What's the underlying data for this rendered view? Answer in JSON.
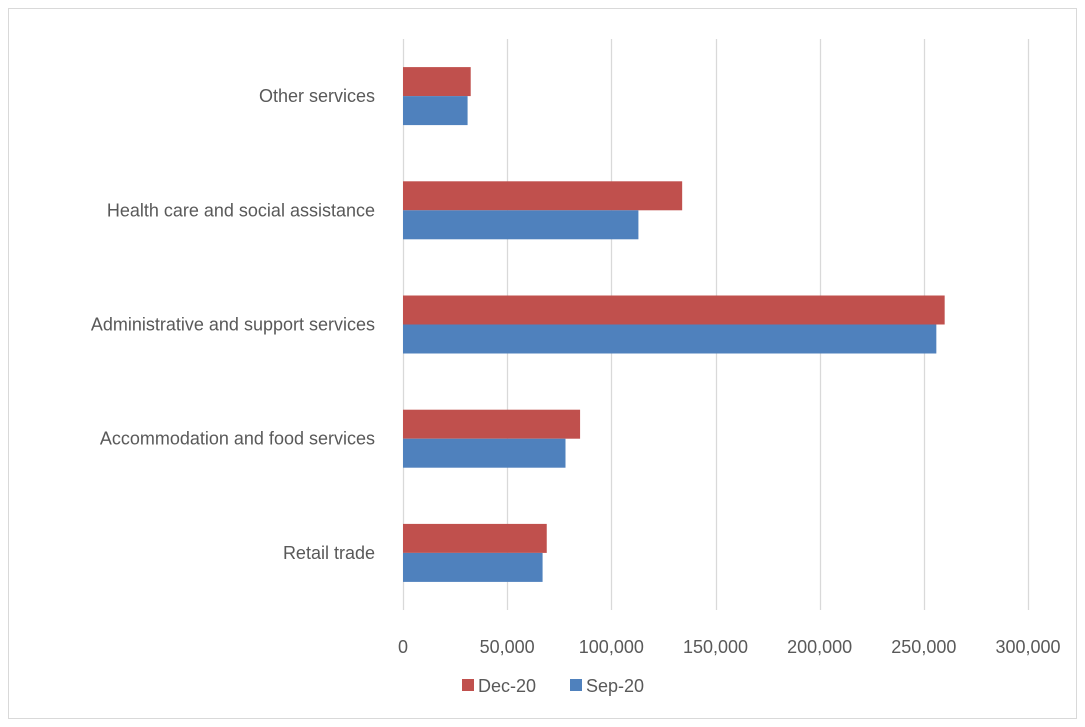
{
  "chart_data": {
    "type": "bar",
    "orientation": "horizontal",
    "title": "",
    "categories": [
      "Retail trade",
      "Accommodation and food services",
      "Administrative and support services",
      "Health care and social assistance",
      "Other services"
    ],
    "series": [
      {
        "name": "Dec-20",
        "color": "#c0504d",
        "values": [
          69000,
          85000,
          260000,
          134000,
          32500
        ]
      },
      {
        "name": "Sep-20",
        "color": "#4f81bd",
        "values": [
          67000,
          78000,
          256000,
          113000,
          31000
        ]
      }
    ],
    "xlim": [
      0,
      300000
    ],
    "x_ticks": [
      0,
      50000,
      100000,
      150000,
      200000,
      250000,
      300000
    ],
    "x_tick_labels": [
      "0",
      "50,000",
      "100,000",
      "150,000",
      "200,000",
      "250,000",
      "300,000"
    ],
    "grid": "vertical",
    "legend_position": "bottom",
    "legend": [
      "Dec-20",
      "Sep-20"
    ]
  }
}
